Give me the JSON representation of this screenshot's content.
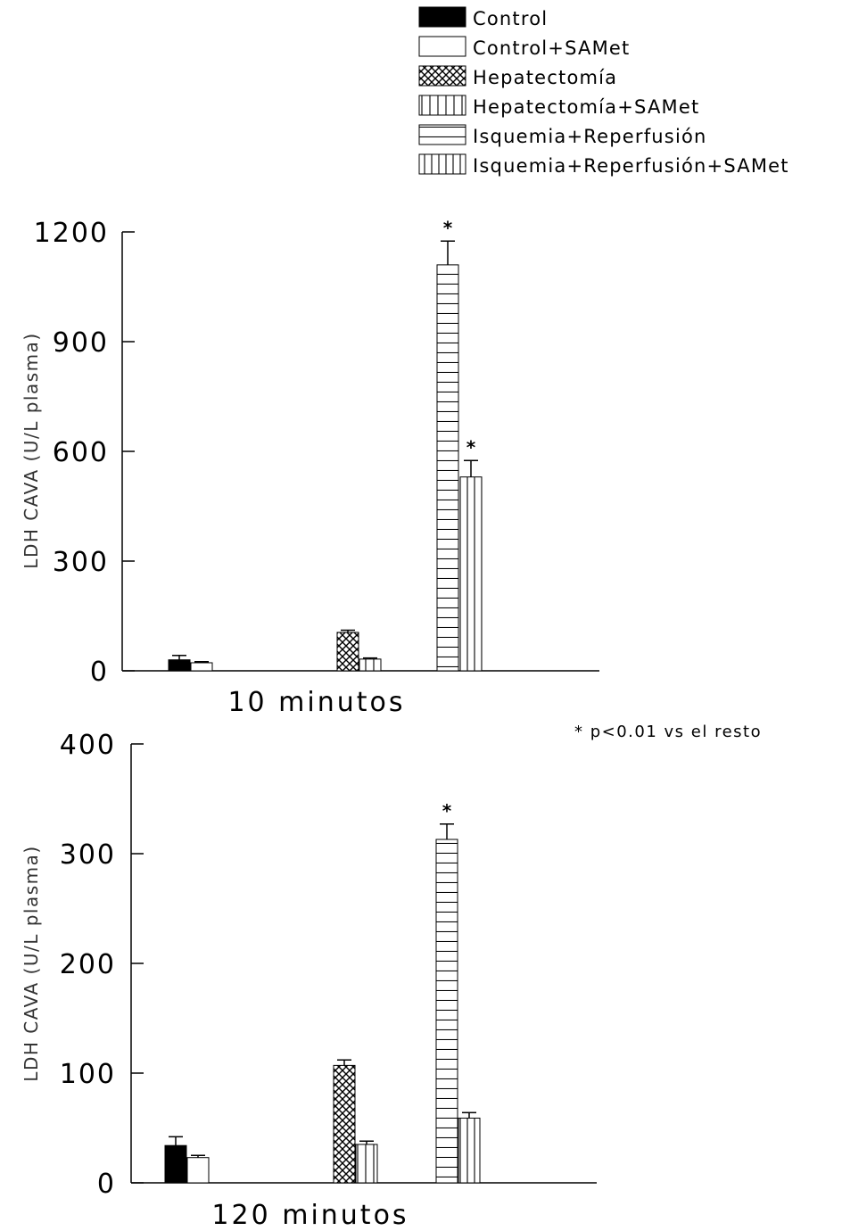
{
  "legend": [
    {
      "label": "Control",
      "pattern": "solid"
    },
    {
      "label": "Control+SAMet",
      "pattern": "empty"
    },
    {
      "label": "Hepatectomía",
      "pattern": "crosshatch"
    },
    {
      "label": "Hepatectomía+SAMet",
      "pattern": "vlines-wide"
    },
    {
      "label": "Isquemia+Reperfusión",
      "pattern": "hlines"
    },
    {
      "label": "Isquemia+Reperfusión+SAMet",
      "pattern": "vlines"
    }
  ],
  "note": "* p<0.01 vs el resto",
  "chart_data": [
    {
      "type": "bar",
      "xlabel": "10 minutos",
      "ylabel": "LDH CAVA (U/L plasma)",
      "ylim": [
        0,
        1200
      ],
      "yticks": [
        0,
        300,
        600,
        900,
        1200
      ],
      "series": [
        {
          "name": "Control",
          "value": 30,
          "error": 12,
          "significant": false
        },
        {
          "name": "Control+SAMet",
          "value": 22,
          "error": 3,
          "significant": false
        },
        {
          "name": "Hepatectomía",
          "value": 105,
          "error": 6,
          "significant": false
        },
        {
          "name": "Hepatectomía+SAMet",
          "value": 32,
          "error": 3,
          "significant": false
        },
        {
          "name": "Isquemia+Reperfusión",
          "value": 1110,
          "error": 65,
          "significant": true
        },
        {
          "name": "Isquemia+Reperfusión+SAMet",
          "value": 530,
          "error": 45,
          "significant": true
        }
      ]
    },
    {
      "type": "bar",
      "xlabel": "120 minutos",
      "ylabel": "LDH CAVA (U/L plasma)",
      "ylim": [
        0,
        400
      ],
      "yticks": [
        0,
        100,
        200,
        300,
        400
      ],
      "series": [
        {
          "name": "Control",
          "value": 34,
          "error": 8,
          "significant": false
        },
        {
          "name": "Control+SAMet",
          "value": 23,
          "error": 2,
          "significant": false
        },
        {
          "name": "Hepatectomía",
          "value": 107,
          "error": 5,
          "significant": false
        },
        {
          "name": "Hepatectomía+SAMet",
          "value": 35,
          "error": 3,
          "significant": false
        },
        {
          "name": "Isquemia+Reperfusión",
          "value": 313,
          "error": 14,
          "significant": true
        },
        {
          "name": "Isquemia+Reperfusión+SAMet",
          "value": 59,
          "error": 5,
          "significant": false
        }
      ]
    }
  ]
}
